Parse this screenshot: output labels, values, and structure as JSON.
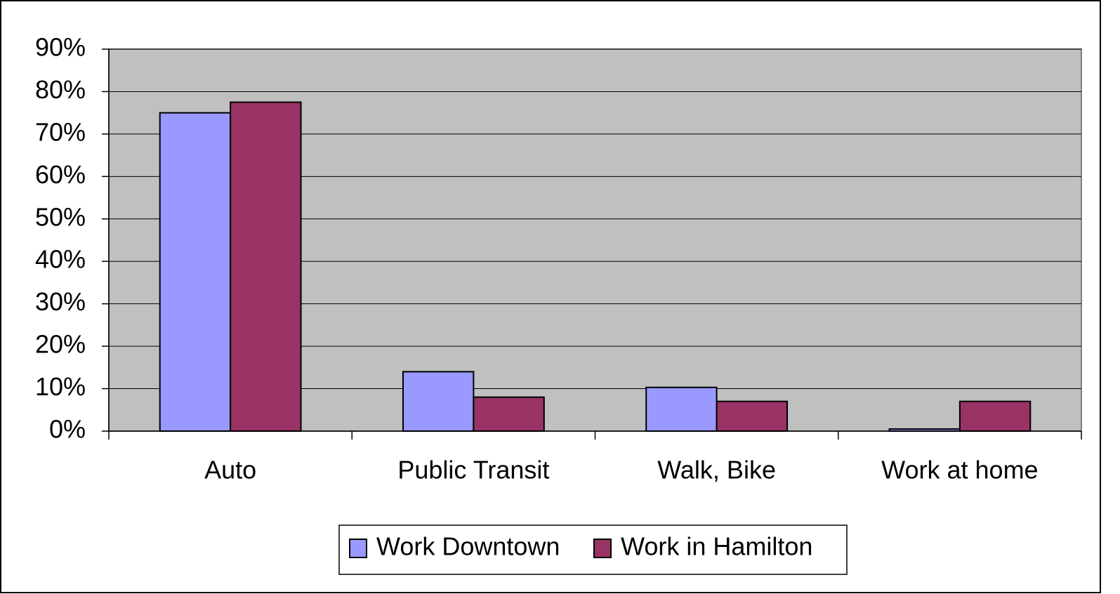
{
  "chart_data": {
    "type": "bar",
    "categories": [
      "Auto",
      "Public Transit",
      "Walk, Bike",
      "Work at home"
    ],
    "series": [
      {
        "name": "Work Downtown",
        "color": "#9999ff",
        "values": [
          75,
          14,
          10.3,
          0.5
        ]
      },
      {
        "name": "Work in Hamilton",
        "color": "#993366",
        "values": [
          77.5,
          8,
          7,
          7
        ]
      }
    ],
    "ylim": [
      0,
      90
    ],
    "yticks": [
      {
        "value": 0,
        "label": "0%"
      },
      {
        "value": 10,
        "label": "10%"
      },
      {
        "value": 20,
        "label": "20%"
      },
      {
        "value": 30,
        "label": "30%"
      },
      {
        "value": 40,
        "label": "40%"
      },
      {
        "value": 50,
        "label": "50%"
      },
      {
        "value": 60,
        "label": "60%"
      },
      {
        "value": 70,
        "label": "70%"
      },
      {
        "value": 80,
        "label": "80%"
      },
      {
        "value": 90,
        "label": "90%"
      }
    ],
    "grid": true,
    "legend": "bottom"
  }
}
